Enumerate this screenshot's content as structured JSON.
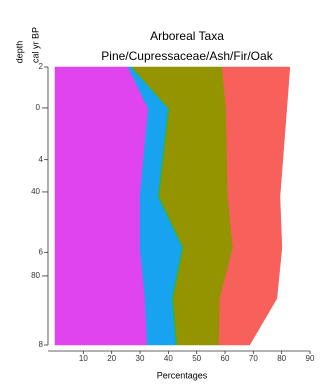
{
  "chart_data": {
    "type": "area",
    "stacked": true,
    "orientation": "horizontal",
    "title": "Arboreal Taxa",
    "subtitle": "Pine/Cupressaceae/Ash/Fir/Oak",
    "xlabel": "Percentages",
    "ylabel": "depth",
    "y2label": "cal yr BP",
    "y": [
      2,
      2.9,
      4.8,
      5.9,
      7,
      8
    ],
    "series": [
      {
        "color": "#df44ee",
        "values": [
          25.8,
          32.9,
          30,
          30,
          31.8,
          32.5
        ]
      },
      {
        "color": "#18a3f0",
        "values": [
          1.1,
          7,
          6.4,
          14.9,
          9.5,
          10.2
        ]
      },
      {
        "color": "#2ab34a",
        "values": [
          0.3,
          0.5,
          0.5,
          0.5,
          0.5,
          0.5
        ]
      },
      {
        "color": "#939400",
        "values": [
          31.8,
          20,
          24.1,
          17.4,
          16.4,
          14.7
        ]
      },
      {
        "color": "#f8615b",
        "values": [
          23.9,
          21.4,
          18.4,
          17.3,
          20.1,
          10.8
        ]
      }
    ],
    "xlim": [
      0,
      90
    ],
    "xticks": [
      10,
      20,
      30,
      40,
      50,
      60,
      70,
      80,
      90
    ],
    "ylim": [
      2,
      8
    ],
    "yticks": [
      2,
      4,
      6,
      8
    ],
    "y_reversed": true,
    "y2lim": [
      -19.5,
      112.9
    ],
    "y2ticks": [
      0,
      40,
      80
    ]
  }
}
